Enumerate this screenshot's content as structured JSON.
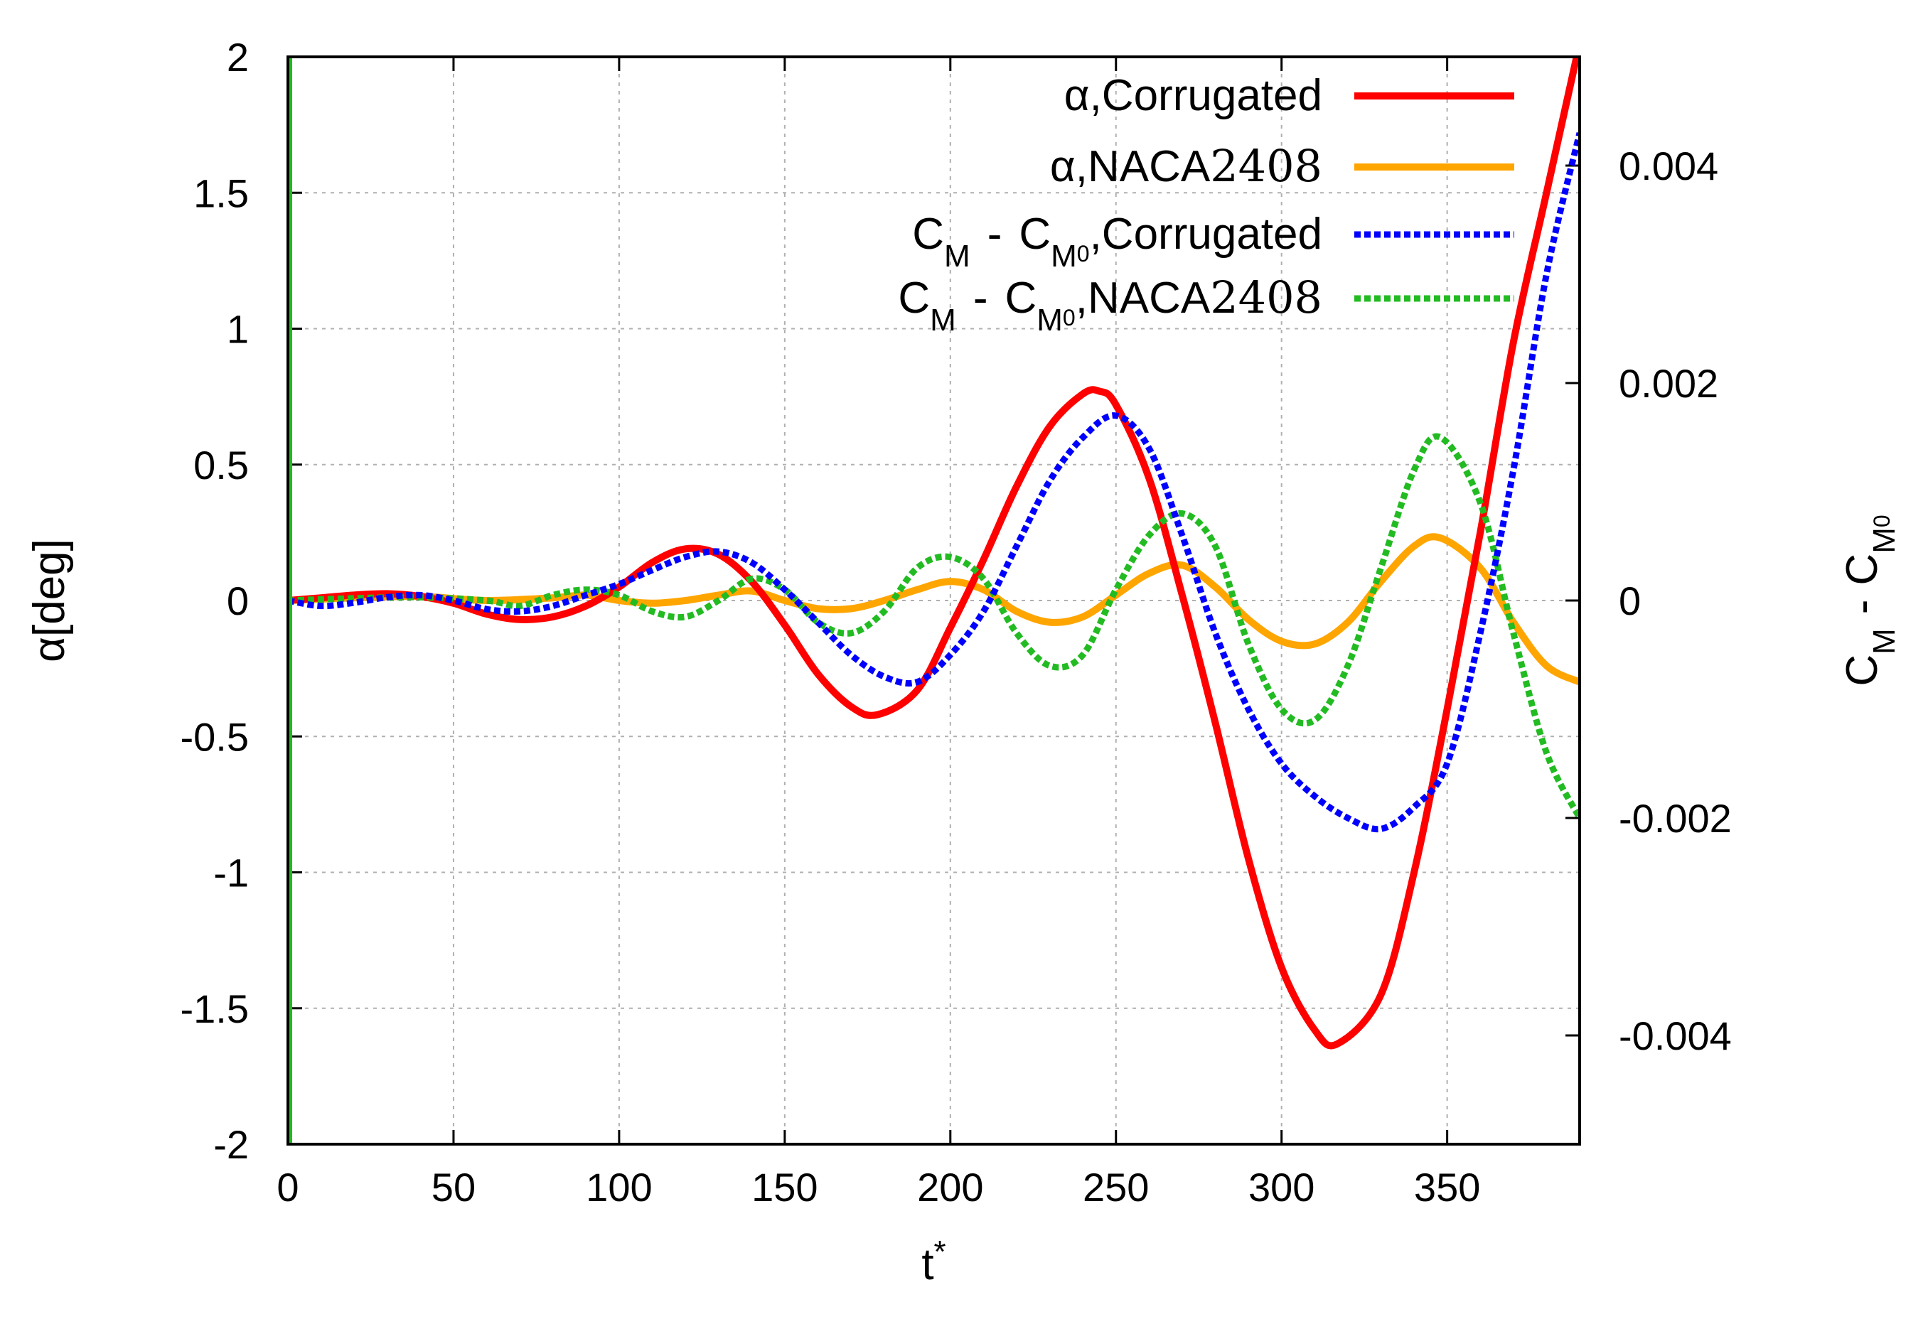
{
  "chart_data": {
    "type": "line",
    "title": "",
    "xlabel": "t",
    "xlabel_superscript": "*",
    "ylabel": "α[deg]",
    "y2label": {
      "base": "C",
      "sub1": "M",
      "minus": "-",
      "sub2": "M",
      "sub2sub": "0"
    },
    "xlim": [
      0,
      390
    ],
    "ylim": [
      -2,
      2
    ],
    "y2lim": [
      -0.005,
      0.005
    ],
    "xticks": [
      0,
      50,
      100,
      150,
      200,
      250,
      300,
      350
    ],
    "xtick_labels": [
      "0",
      "50",
      "100",
      "150",
      "200",
      "250",
      "300",
      "350"
    ],
    "yticks": [
      -2,
      -1.5,
      -1,
      -0.5,
      0,
      0.5,
      1,
      1.5,
      2
    ],
    "ytick_labels": [
      "-2",
      "-1.5",
      "-1",
      "-0.5",
      "0",
      "0.5",
      "1",
      "1.5",
      "2"
    ],
    "y2ticks": [
      -0.004,
      -0.002,
      0,
      0.002,
      0.004
    ],
    "y2tick_labels": [
      "-0.004",
      "-0.002",
      "0",
      "0.002",
      "0.004"
    ],
    "grid": true,
    "legend_position": "top-right",
    "series": [
      {
        "name": "α,Corrugated",
        "legend": {
          "prefix": "α,Corrugated"
        },
        "axis": "left",
        "color": "#ff0000",
        "style": "solid",
        "points": [
          [
            0,
            0
          ],
          [
            10,
            0.01
          ],
          [
            20,
            0.02
          ],
          [
            30,
            0.025
          ],
          [
            40,
            0.015
          ],
          [
            50,
            -0.01
          ],
          [
            60,
            -0.05
          ],
          [
            70,
            -0.07
          ],
          [
            80,
            -0.06
          ],
          [
            90,
            -0.02
          ],
          [
            100,
            0.05
          ],
          [
            110,
            0.14
          ],
          [
            120,
            0.19
          ],
          [
            130,
            0.17
          ],
          [
            140,
            0.07
          ],
          [
            150,
            -0.09
          ],
          [
            160,
            -0.27
          ],
          [
            170,
            -0.39
          ],
          [
            178,
            -0.42
          ],
          [
            190,
            -0.33
          ],
          [
            200,
            -0.1
          ],
          [
            210,
            0.15
          ],
          [
            220,
            0.42
          ],
          [
            230,
            0.64
          ],
          [
            240,
            0.76
          ],
          [
            245,
            0.77
          ],
          [
            250,
            0.72
          ],
          [
            260,
            0.45
          ],
          [
            270,
            0.02
          ],
          [
            280,
            -0.45
          ],
          [
            290,
            -0.95
          ],
          [
            300,
            -1.35
          ],
          [
            310,
            -1.58
          ],
          [
            317,
            -1.63
          ],
          [
            330,
            -1.45
          ],
          [
            340,
            -1.0
          ],
          [
            350,
            -0.4
          ],
          [
            360,
            0.25
          ],
          [
            370,
            0.95
          ],
          [
            380,
            1.5
          ],
          [
            390,
            2.05
          ]
        ]
      },
      {
        "name": "α,NACA2408",
        "legend": {
          "prefix": "α,NACA",
          "suffix": "2408"
        },
        "axis": "left",
        "color": "#ffa500",
        "style": "solid",
        "points": [
          [
            0,
            0
          ],
          [
            20,
            0.01
          ],
          [
            40,
            0.015
          ],
          [
            60,
            0.0
          ],
          [
            80,
            0.01
          ],
          [
            90,
            0.02
          ],
          [
            100,
            0.0
          ],
          [
            110,
            -0.01
          ],
          [
            120,
            0.0
          ],
          [
            130,
            0.02
          ],
          [
            140,
            0.035
          ],
          [
            150,
            0.0
          ],
          [
            160,
            -0.03
          ],
          [
            170,
            -0.03
          ],
          [
            180,
            0.0
          ],
          [
            190,
            0.04
          ],
          [
            200,
            0.07
          ],
          [
            210,
            0.04
          ],
          [
            220,
            -0.04
          ],
          [
            230,
            -0.08
          ],
          [
            240,
            -0.06
          ],
          [
            250,
            0.02
          ],
          [
            260,
            0.1
          ],
          [
            270,
            0.13
          ],
          [
            280,
            0.05
          ],
          [
            290,
            -0.07
          ],
          [
            300,
            -0.15
          ],
          [
            310,
            -0.16
          ],
          [
            320,
            -0.08
          ],
          [
            330,
            0.07
          ],
          [
            340,
            0.2
          ],
          [
            348,
            0.23
          ],
          [
            360,
            0.12
          ],
          [
            370,
            -0.08
          ],
          [
            380,
            -0.24
          ],
          [
            390,
            -0.3
          ]
        ]
      },
      {
        "name": "C_M - C_M0,Corrugated",
        "legend": {
          "c": "C",
          "sub_m": "M",
          "minus": "-",
          "sub_m0": "M",
          "sub_zero": "0",
          "suffix": ",Corrugated"
        },
        "axis": "right",
        "color": "#0000ff",
        "style": "dotted",
        "points": [
          [
            0,
            0
          ],
          [
            10,
            -5e-05
          ],
          [
            20,
            -2e-05
          ],
          [
            30,
            3e-05
          ],
          [
            40,
            5e-05
          ],
          [
            50,
            0.0
          ],
          [
            60,
            -8e-05
          ],
          [
            70,
            -0.0001
          ],
          [
            80,
            -5e-05
          ],
          [
            90,
            5e-05
          ],
          [
            100,
            0.00015
          ],
          [
            110,
            0.00028
          ],
          [
            120,
            0.0004
          ],
          [
            130,
            0.00045
          ],
          [
            140,
            0.00035
          ],
          [
            150,
            0.0001
          ],
          [
            160,
            -0.0002
          ],
          [
            170,
            -0.0005
          ],
          [
            180,
            -0.0007
          ],
          [
            190,
            -0.00075
          ],
          [
            200,
            -0.0005
          ],
          [
            210,
            -0.0001
          ],
          [
            220,
            0.0005
          ],
          [
            230,
            0.0011
          ],
          [
            240,
            0.0015
          ],
          [
            250,
            0.0017
          ],
          [
            260,
            0.0014
          ],
          [
            270,
            0.0006
          ],
          [
            280,
            -0.0003
          ],
          [
            290,
            -0.001
          ],
          [
            300,
            -0.0015
          ],
          [
            310,
            -0.0018
          ],
          [
            320,
            -0.002
          ],
          [
            330,
            -0.0021
          ],
          [
            340,
            -0.0019
          ],
          [
            350,
            -0.0015
          ],
          [
            360,
            -0.0003
          ],
          [
            370,
            0.0012
          ],
          [
            380,
            0.003
          ],
          [
            390,
            0.0043
          ]
        ]
      },
      {
        "name": "C_M - C_M0,NACA2408",
        "legend": {
          "c": "C",
          "sub_m": "M",
          "minus": "-",
          "sub_m0": "M",
          "sub_zero": "0",
          "prefix2": ",NACA",
          "suffix": "2408"
        },
        "axis": "right",
        "color": "#22bb22",
        "style": "dotted",
        "points": [
          [
            0,
            0
          ],
          [
            20,
            2e-05
          ],
          [
            40,
            3e-05
          ],
          [
            60,
            0.0
          ],
          [
            70,
            -5e-05
          ],
          [
            80,
            5e-05
          ],
          [
            90,
            0.0001
          ],
          [
            100,
            5e-05
          ],
          [
            110,
            -0.0001
          ],
          [
            120,
            -0.00015
          ],
          [
            130,
            0.0
          ],
          [
            140,
            0.0002
          ],
          [
            150,
            0.0001
          ],
          [
            160,
            -0.0002
          ],
          [
            170,
            -0.0003
          ],
          [
            180,
            -0.0001
          ],
          [
            190,
            0.0003
          ],
          [
            200,
            0.0004
          ],
          [
            210,
            0.0002
          ],
          [
            220,
            -0.0003
          ],
          [
            230,
            -0.0006
          ],
          [
            240,
            -0.0005
          ],
          [
            250,
            0.0001
          ],
          [
            260,
            0.0006
          ],
          [
            270,
            0.0008
          ],
          [
            280,
            0.0005
          ],
          [
            290,
            -0.0004
          ],
          [
            300,
            -0.001
          ],
          [
            310,
            -0.0011
          ],
          [
            320,
            -0.0006
          ],
          [
            330,
            0.0003
          ],
          [
            340,
            0.0012
          ],
          [
            348,
            0.0015
          ],
          [
            360,
            0.0009
          ],
          [
            370,
            -0.0003
          ],
          [
            380,
            -0.0014
          ],
          [
            390,
            -0.002
          ]
        ]
      }
    ]
  }
}
